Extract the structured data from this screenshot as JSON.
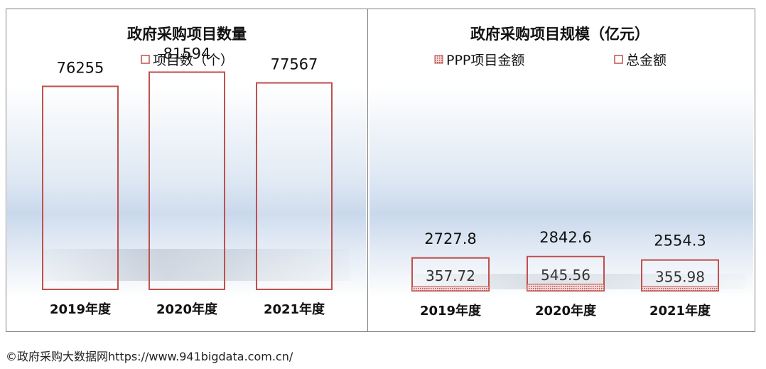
{
  "footer": "©政府采购大数据网https://www.941bigdata.com.cn/",
  "colors": {
    "outline": "#c0504d",
    "pattern": "#c0504d",
    "text": "#111111"
  },
  "chart_data": [
    {
      "type": "bar",
      "title": "政府采购项目数量",
      "legend": [
        "项目数（个）"
      ],
      "legend_position": "top",
      "categories": [
        "2019年度",
        "2020年度",
        "2021年度"
      ],
      "series": [
        {
          "name": "项目数（个）",
          "values": [
            76255,
            81594,
            77567
          ]
        }
      ],
      "data_labels": [
        "76255",
        "81594",
        "77567"
      ],
      "ylim": [
        0,
        90000
      ],
      "grid": false
    },
    {
      "type": "bar",
      "title": "政府采购项目规模（亿元）",
      "legend": [
        "PPP项目金额",
        "总金额"
      ],
      "legend_position": "top",
      "categories": [
        "2019年度",
        "2020年度",
        "2021年度"
      ],
      "series": [
        {
          "name": "PPP项目金额",
          "values": [
            357.72,
            545.56,
            355.98
          ]
        },
        {
          "name": "总金额",
          "values": [
            2727.8,
            2842.6,
            2554.3
          ]
        }
      ],
      "data_labels": {
        "PPP项目金额": [
          "357.72",
          "545.56",
          "355.98"
        ],
        "总金额": [
          "2727.8",
          "2842.6",
          "2554.3"
        ]
      },
      "ylim": [
        0,
        20000
      ],
      "grid": false
    }
  ]
}
